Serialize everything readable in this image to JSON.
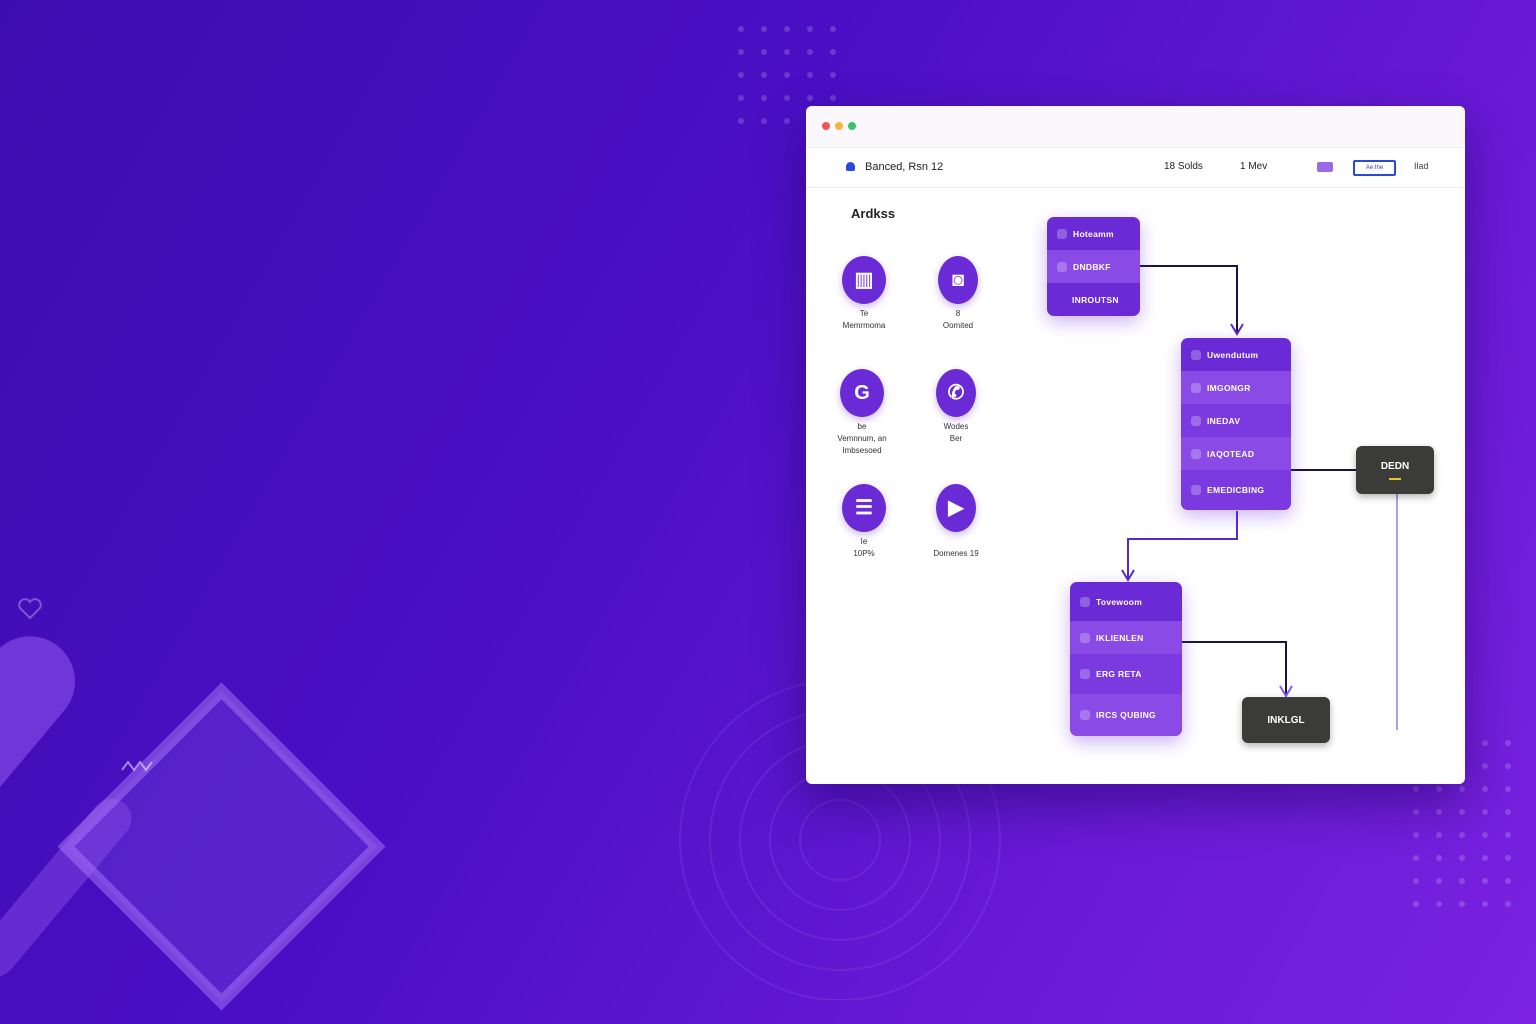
{
  "header": {
    "title": "Banced, Rsn 12",
    "stat1": "18 Solds",
    "stat2": "1  Mev",
    "button": "Ae Ihe",
    "link": "Ilad"
  },
  "section": {
    "title": "Ardkss"
  },
  "apps": [
    {
      "icon": "building-icon",
      "line1": "Te",
      "line2": "Memrmoma"
    },
    {
      "icon": "camera-icon",
      "line1": "8",
      "line2": "Oomited"
    },
    {
      "icon": "google-icon",
      "line1": "be",
      "line2": "Vemnnum, an",
      "line3": "Imbsesoed"
    },
    {
      "icon": "phone-icon",
      "line1": "Wodes",
      "line2": "Ber"
    },
    {
      "icon": "list-icon",
      "line1": "Ie",
      "line2": "10P%"
    },
    {
      "icon": "video-icon",
      "line1": "Domenes 19"
    }
  ],
  "flow": {
    "node1": [
      "Hoteamm",
      "DNDBKF",
      "INROUTSN"
    ],
    "node2": [
      "Uwendutum",
      "IMGONGR",
      "INEDAV",
      "IAQOTEAD",
      "EMEDICBING"
    ],
    "node3": [
      "Tovewoom",
      "IKLIENLEN",
      "ERG RETA",
      "IRCS QUBING"
    ],
    "dark1": "DEDN",
    "dark2": "INKLGL"
  },
  "colors": {
    "accent": "#6a2bd6",
    "background": "#4a0fc4",
    "dark_node": "#3b3b38"
  }
}
